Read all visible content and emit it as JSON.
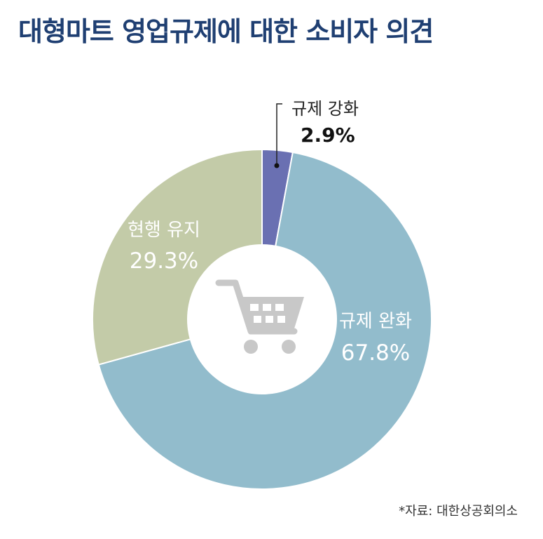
{
  "title": "대형마트 영업규제에 대한 소비자 의견",
  "source": "*자료: 대한상공회의소",
  "icon": "shopping-cart-icon",
  "chart_data": {
    "type": "pie",
    "variant": "donut",
    "title": "대형마트 영업규제에 대한 소비자 의견",
    "slices": [
      {
        "label": "규제 강화",
        "value": 2.9,
        "display": "2.9%",
        "color": "#6a70b2"
      },
      {
        "label": "규제 완화",
        "value": 67.8,
        "display": "67.8%",
        "color": "#92bccc"
      },
      {
        "label": "현행 유지",
        "value": 29.3,
        "display": "29.3%",
        "color": "#c3cba8"
      }
    ],
    "start": "top, clockwise",
    "legend": "none (labels on chart)"
  }
}
